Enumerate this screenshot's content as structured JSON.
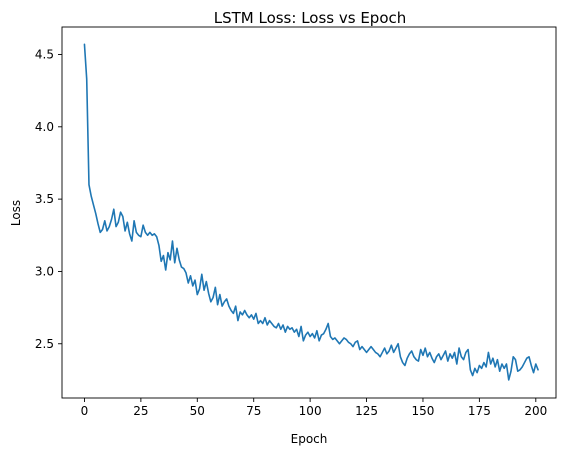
{
  "chart_data": {
    "type": "line",
    "title": "LSTM Loss: Loss vs Epoch",
    "xlabel": "Epoch",
    "ylabel": "Loss",
    "xlim": [
      -9.95,
      208.95
    ],
    "ylim": [
      2.125,
      4.69
    ],
    "xticks": [
      0,
      25,
      50,
      75,
      100,
      125,
      150,
      175,
      200
    ],
    "yticks": [
      2.5,
      3.0,
      3.5,
      4.0,
      4.5
    ],
    "xtick_labels": [
      "0",
      "25",
      "50",
      "75",
      "100",
      "125",
      "150",
      "175",
      "200"
    ],
    "ytick_labels": [
      "2.5",
      "3.0",
      "3.5",
      "4.0",
      "4.5"
    ],
    "grid": false,
    "series_color": "#1f77b4",
    "x_start": 0,
    "x_step": 1,
    "values": [
      4.57,
      4.33,
      3.6,
      3.52,
      3.46,
      3.4,
      3.33,
      3.27,
      3.29,
      3.35,
      3.28,
      3.31,
      3.36,
      3.43,
      3.31,
      3.34,
      3.41,
      3.38,
      3.28,
      3.34,
      3.26,
      3.21,
      3.35,
      3.27,
      3.25,
      3.24,
      3.32,
      3.27,
      3.25,
      3.27,
      3.25,
      3.26,
      3.24,
      3.18,
      3.07,
      3.11,
      3.01,
      3.13,
      3.08,
      3.21,
      3.06,
      3.16,
      3.08,
      3.03,
      3.02,
      2.99,
      2.92,
      2.97,
      2.9,
      2.94,
      2.84,
      2.88,
      2.98,
      2.87,
      2.93,
      2.85,
      2.79,
      2.82,
      2.89,
      2.77,
      2.84,
      2.76,
      2.79,
      2.81,
      2.76,
      2.73,
      2.71,
      2.76,
      2.66,
      2.72,
      2.7,
      2.73,
      2.7,
      2.68,
      2.7,
      2.67,
      2.71,
      2.64,
      2.66,
      2.64,
      2.68,
      2.63,
      2.66,
      2.64,
      2.62,
      2.61,
      2.64,
      2.6,
      2.63,
      2.58,
      2.62,
      2.6,
      2.61,
      2.58,
      2.6,
      2.55,
      2.62,
      2.52,
      2.56,
      2.58,
      2.55,
      2.57,
      2.54,
      2.59,
      2.52,
      2.56,
      2.57,
      2.6,
      2.64,
      2.55,
      2.53,
      2.54,
      2.52,
      2.5,
      2.52,
      2.54,
      2.53,
      2.51,
      2.5,
      2.48,
      2.51,
      2.52,
      2.46,
      2.48,
      2.46,
      2.44,
      2.46,
      2.48,
      2.46,
      2.44,
      2.43,
      2.41,
      2.44,
      2.47,
      2.43,
      2.45,
      2.49,
      2.44,
      2.47,
      2.5,
      2.41,
      2.37,
      2.35,
      2.4,
      2.43,
      2.45,
      2.41,
      2.39,
      2.38,
      2.46,
      2.42,
      2.47,
      2.41,
      2.44,
      2.4,
      2.37,
      2.41,
      2.43,
      2.39,
      2.42,
      2.45,
      2.38,
      2.43,
      2.4,
      2.44,
      2.36,
      2.47,
      2.41,
      2.39,
      2.44,
      2.46,
      2.32,
      2.28,
      2.33,
      2.3,
      2.35,
      2.33,
      2.37,
      2.34,
      2.44,
      2.36,
      2.4,
      2.34,
      2.39,
      2.31,
      2.36,
      2.33,
      2.36,
      2.25,
      2.31,
      2.41,
      2.39,
      2.31,
      2.32,
      2.34,
      2.37,
      2.4,
      2.41,
      2.35,
      2.3,
      2.36,
      2.32
    ]
  }
}
